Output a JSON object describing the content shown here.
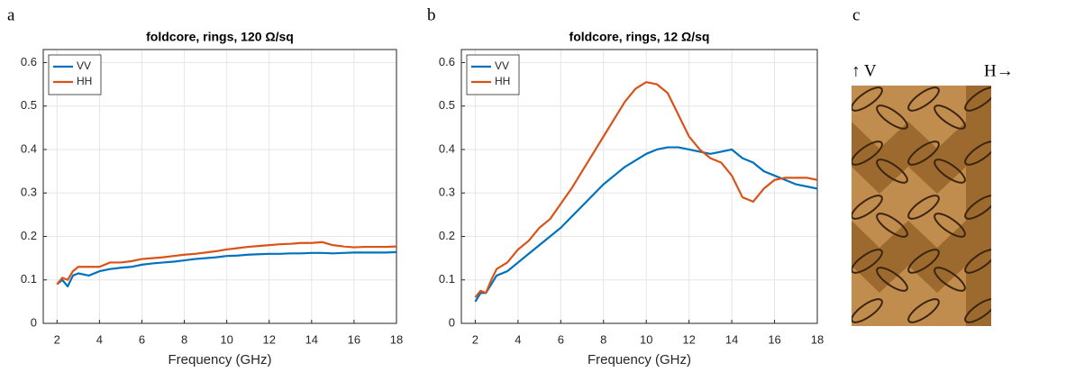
{
  "panels": [
    "a",
    "b",
    "c"
  ],
  "image_labels": [
    "↑ V",
    "H→"
  ],
  "chart_data": [
    {
      "type": "line",
      "title": "foldcore, rings, 120 Ω/sq",
      "xlabel": "Frequency (GHz)",
      "x": [
        2,
        2.25,
        2.5,
        2.75,
        3,
        3.5,
        4,
        4.5,
        5,
        5.5,
        6,
        6.5,
        7,
        7.5,
        8,
        8.5,
        9,
        9.5,
        10,
        10.5,
        11,
        11.5,
        12,
        12.5,
        13,
        13.5,
        14,
        14.5,
        15,
        15.5,
        16,
        16.5,
        17,
        17.5,
        18
      ],
      "series": [
        {
          "name": "VV",
          "color": "#0072bd",
          "values": [
            0.09,
            0.1,
            0.085,
            0.11,
            0.115,
            0.11,
            0.12,
            0.125,
            0.128,
            0.13,
            0.135,
            0.138,
            0.14,
            0.142,
            0.145,
            0.148,
            0.15,
            0.152,
            0.155,
            0.156,
            0.158,
            0.159,
            0.16,
            0.16,
            0.161,
            0.161,
            0.162,
            0.162,
            0.161,
            0.162,
            0.163,
            0.163,
            0.163,
            0.163,
            0.164
          ]
        },
        {
          "name": "HH",
          "color": "#d95319",
          "values": [
            0.09,
            0.105,
            0.1,
            0.12,
            0.13,
            0.13,
            0.13,
            0.14,
            0.14,
            0.143,
            0.148,
            0.15,
            0.152,
            0.155,
            0.158,
            0.16,
            0.163,
            0.166,
            0.17,
            0.173,
            0.176,
            0.178,
            0.18,
            0.182,
            0.183,
            0.185,
            0.185,
            0.187,
            0.18,
            0.177,
            0.175,
            0.176,
            0.176,
            0.176,
            0.177
          ]
        }
      ],
      "xlim": [
        1.35,
        18
      ],
      "xticks": [
        2,
        4,
        6,
        8,
        10,
        12,
        14,
        16,
        18
      ],
      "ylim": [
        0,
        0.63
      ],
      "yticks": [
        0,
        0.1,
        0.2,
        0.3,
        0.4,
        0.5,
        0.6
      ],
      "grid": true,
      "legend": "northwest"
    },
    {
      "type": "line",
      "title": "foldcore, rings, 12 Ω/sq",
      "xlabel": "Frequency (GHz)",
      "x": [
        2,
        2.25,
        2.5,
        2.75,
        3,
        3.5,
        4,
        4.5,
        5,
        5.5,
        6,
        6.5,
        7,
        7.5,
        8,
        8.5,
        9,
        9.5,
        10,
        10.5,
        11,
        11.5,
        12,
        12.5,
        13,
        13.5,
        14,
        14.5,
        15,
        15.5,
        16,
        16.5,
        17,
        17.5,
        18
      ],
      "series": [
        {
          "name": "VV",
          "color": "#0072bd",
          "values": [
            0.05,
            0.07,
            0.07,
            0.09,
            0.11,
            0.12,
            0.14,
            0.16,
            0.18,
            0.2,
            0.22,
            0.245,
            0.27,
            0.295,
            0.32,
            0.34,
            0.36,
            0.375,
            0.39,
            0.4,
            0.405,
            0.405,
            0.4,
            0.395,
            0.39,
            0.395,
            0.4,
            0.38,
            0.37,
            0.35,
            0.34,
            0.33,
            0.32,
            0.315,
            0.31
          ]
        },
        {
          "name": "HH",
          "color": "#d95319",
          "values": [
            0.06,
            0.075,
            0.07,
            0.1,
            0.125,
            0.14,
            0.17,
            0.19,
            0.22,
            0.24,
            0.275,
            0.31,
            0.35,
            0.39,
            0.43,
            0.47,
            0.51,
            0.54,
            0.555,
            0.55,
            0.53,
            0.48,
            0.43,
            0.4,
            0.38,
            0.37,
            0.34,
            0.29,
            0.28,
            0.31,
            0.33,
            0.335,
            0.335,
            0.335,
            0.33
          ]
        }
      ],
      "xlim": [
        1.35,
        18
      ],
      "xticks": [
        2,
        4,
        6,
        8,
        10,
        12,
        14,
        16,
        18
      ],
      "ylim": [
        0,
        0.63
      ],
      "yticks": [
        0,
        0.1,
        0.2,
        0.3,
        0.4,
        0.5,
        0.6
      ],
      "grid": true,
      "legend": "northwest"
    }
  ]
}
